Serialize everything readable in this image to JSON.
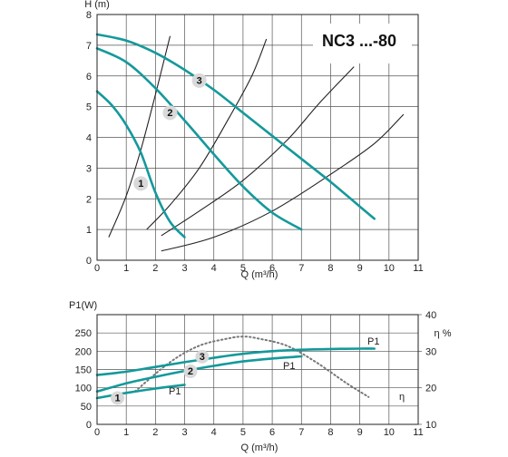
{
  "colors": {
    "pump_curve": "#14999b",
    "system_curve": "#222222",
    "efficiency_curve": "#777777",
    "badge": "#d9d9d9"
  },
  "chart_data": [
    {
      "type": "line",
      "title": "NC3 ...-80",
      "xlabel": "Q (m³/h)",
      "ylabel": "H (m)",
      "xlim": [
        0,
        11
      ],
      "ylim": [
        0,
        8
      ],
      "x_ticks": [
        "0",
        "1",
        "2",
        "3",
        "4",
        "5",
        "6",
        "7",
        "8",
        "9",
        "10",
        "11"
      ],
      "y_ticks": [
        "0",
        "1",
        "2",
        "3",
        "4",
        "5",
        "6",
        "7",
        "8"
      ],
      "grid": true,
      "series": [
        {
          "name": "1",
          "label": "1",
          "label_at": [
            1.5,
            2.5
          ],
          "x": [
            0,
            0.5,
            1,
            1.5,
            2,
            2.5,
            3
          ],
          "y": [
            5.5,
            5.05,
            4.4,
            3.5,
            2.2,
            1.25,
            0.75
          ]
        },
        {
          "name": "2",
          "label": "2",
          "label_at": [
            2.5,
            4.8
          ],
          "x": [
            0,
            1,
            2,
            3,
            4,
            5,
            6,
            7
          ],
          "y": [
            6.9,
            6.45,
            5.6,
            4.55,
            3.45,
            2.4,
            1.55,
            1.0
          ]
        },
        {
          "name": "3",
          "label": "3",
          "label_at": [
            3.5,
            5.85
          ],
          "x": [
            0,
            1,
            2,
            3,
            4,
            5,
            6,
            7,
            8,
            9,
            9.5
          ],
          "y": [
            7.35,
            7.15,
            6.75,
            6.2,
            5.55,
            4.8,
            4.05,
            3.3,
            2.55,
            1.75,
            1.35
          ]
        }
      ],
      "system_curves": [
        {
          "x": [
            0.4,
            1,
            1.5,
            2,
            2.5
          ],
          "y": [
            0.75,
            2.1,
            3.6,
            5.4,
            7.3
          ]
        },
        {
          "x": [
            1.7,
            2.5,
            3.5,
            4.5,
            5.3,
            5.8
          ],
          "y": [
            1.0,
            1.8,
            3.0,
            4.6,
            6.0,
            7.2
          ]
        },
        {
          "x": [
            2.2,
            3.5,
            5,
            6.5,
            7.6,
            8.8
          ],
          "y": [
            0.8,
            1.6,
            2.6,
            3.9,
            5.1,
            6.3
          ]
        },
        {
          "x": [
            2.2,
            4,
            6,
            8,
            9.5,
            10.5
          ],
          "y": [
            0.3,
            0.75,
            1.6,
            2.8,
            3.8,
            4.75
          ]
        }
      ]
    },
    {
      "type": "line",
      "xlabel": "Q (m³/h)",
      "ylabel": "P1(W)",
      "y2label": "η %",
      "xlim": [
        0,
        11
      ],
      "ylim": [
        0,
        300
      ],
      "y2lim": [
        10,
        40
      ],
      "x_ticks": [
        "0",
        "1",
        "2",
        "3",
        "4",
        "5",
        "6",
        "7",
        "8",
        "9",
        "10",
        "11"
      ],
      "y_ticks": [
        "0",
        "50",
        "100",
        "150",
        "200",
        "250"
      ],
      "y2_ticks": [
        "10",
        "20",
        "30",
        "40"
      ],
      "grid": true,
      "series": [
        {
          "name": "1",
          "label": "1",
          "label_at": [
            0.7,
            72
          ],
          "x": [
            0,
            1,
            2,
            3
          ],
          "y": [
            72,
            86,
            98,
            108
          ]
        },
        {
          "name": "2",
          "label": "2",
          "label_at": [
            3.2,
            145
          ],
          "x": [
            0,
            1,
            2,
            3,
            4,
            5,
            6,
            7
          ],
          "y": [
            90,
            112,
            130,
            146,
            160,
            172,
            180,
            186
          ]
        },
        {
          "name": "3",
          "label": "3",
          "label_at": [
            3.6,
            185
          ],
          "x": [
            0,
            1,
            2,
            3,
            4,
            5,
            6,
            7,
            8,
            9,
            9.5
          ],
          "y": [
            135,
            144,
            157,
            170,
            182,
            193,
            200,
            204,
            206,
            207,
            207
          ]
        }
      ],
      "efficiency": {
        "name": "η",
        "x": [
          1.3,
          2.5,
          3.5,
          4.5,
          5,
          5.5,
          6.5,
          7.5,
          8.5,
          9.3
        ],
        "y": [
          19,
          27,
          31.5,
          33.5,
          34,
          33.5,
          31.5,
          27,
          21.5,
          17.5
        ]
      },
      "annotations": [
        "P1",
        "P1",
        "P1",
        "η"
      ]
    }
  ]
}
